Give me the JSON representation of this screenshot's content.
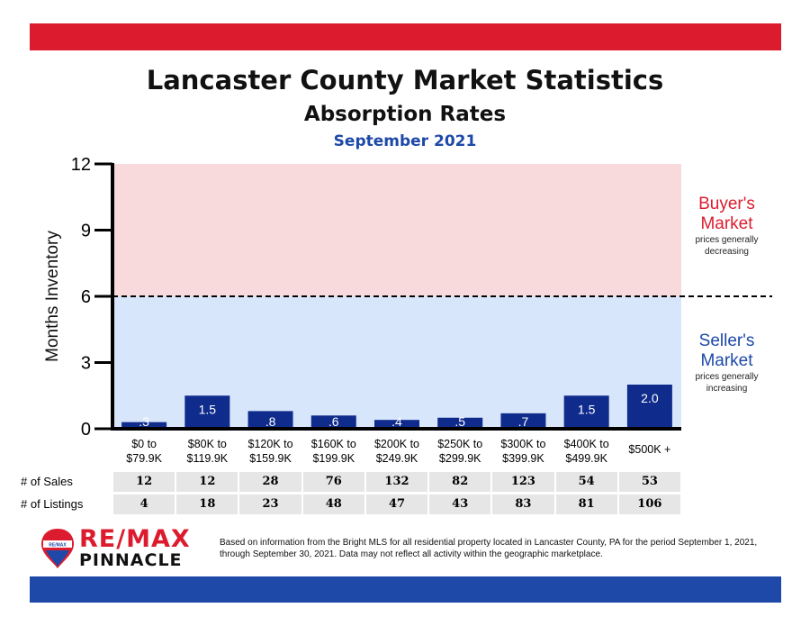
{
  "colors": {
    "brand_red": "#dc1c2e",
    "brand_blue": "#1e49a8",
    "bar_navy": "#0f2b8c",
    "buyer_zone": "#f8dadc",
    "seller_zone": "#d8e6fb"
  },
  "header": {
    "title": "Lancaster County Market Statistics",
    "subtitle": "Absorption Rates",
    "period": "September 2021"
  },
  "chart_data": {
    "type": "bar",
    "ylabel": "Months Inventory",
    "ylim": [
      0,
      12
    ],
    "yticks": [
      "0",
      "3",
      "6",
      "9",
      "12"
    ],
    "threshold": 6,
    "categories": [
      [
        "$0 to",
        "$79.9K"
      ],
      [
        "$80K to",
        "$119.9K"
      ],
      [
        "$120K to",
        "$159.9K"
      ],
      [
        "$160K to",
        "$199.9K"
      ],
      [
        "$200K to",
        "$249.9K"
      ],
      [
        "$250K to",
        "$299.9K"
      ],
      [
        "$300K to",
        "$399.9K"
      ],
      [
        "$400K to",
        "$499.9K"
      ],
      [
        "$500K +"
      ]
    ],
    "values": [
      0.3,
      1.5,
      0.8,
      0.6,
      0.4,
      0.5,
      0.7,
      1.5,
      2.0
    ],
    "value_labels": [
      ".3",
      "1.5",
      ".8",
      ".6",
      ".4",
      ".5",
      ".7",
      "1.5",
      "2.0"
    ],
    "zones": {
      "buyer": {
        "title_line1": "Buyer's",
        "title_line2": "Market",
        "note_line1": "prices generally",
        "note_line2": "decreasing"
      },
      "seller": {
        "title_line1": "Seller's",
        "title_line2": "Market",
        "note_line1": "prices generally",
        "note_line2": "increasing"
      }
    }
  },
  "table": {
    "sales_label": "# of Sales",
    "sales": [
      "12",
      "12",
      "28",
      "76",
      "132",
      "82",
      "123",
      "54",
      "53"
    ],
    "listings_label": "# of Listings",
    "listings": [
      "4",
      "18",
      "23",
      "48",
      "47",
      "43",
      "83",
      "81",
      "106"
    ]
  },
  "logo": {
    "line1": "RE/MAX",
    "line2": "PINNACLE",
    "balloon_text": "RE/MAX"
  },
  "footnote": "Based on information from the Bright MLS for all residential property located in Lancaster County, PA for the period September 1, 2021, through September 30, 2021.  Data may not reflect all activity within the geographic marketplace."
}
